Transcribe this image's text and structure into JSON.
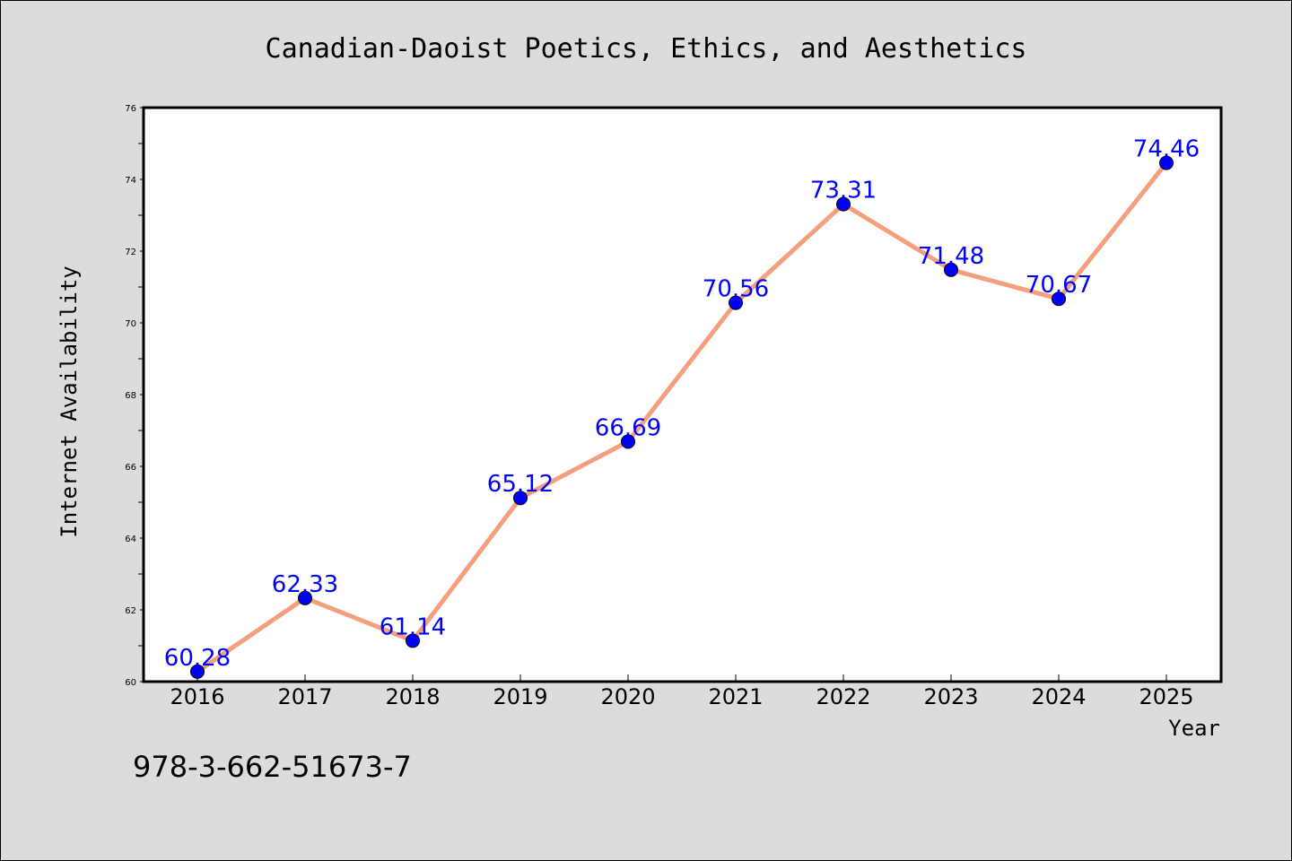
{
  "chart_data": {
    "type": "line",
    "title": "Canadian-Daoist Poetics, Ethics, and Aesthetics",
    "xlabel": "Year",
    "ylabel": "Internet Availability",
    "categories": [
      "2016",
      "2017",
      "2018",
      "2019",
      "2020",
      "2021",
      "2022",
      "2023",
      "2024",
      "2025"
    ],
    "values": [
      60.28,
      62.33,
      61.14,
      65.12,
      66.69,
      70.56,
      73.31,
      71.48,
      70.67,
      74.46
    ],
    "data_labels": [
      "60.28",
      "62.33",
      "61.14",
      "65.12",
      "66.69",
      "70.56",
      "73.31",
      "71.48",
      "70.67",
      "74.46"
    ],
    "ylim": [
      60,
      76
    ],
    "yticks": [
      "60",
      "62",
      "64",
      "66",
      "68",
      "70",
      "72",
      "74",
      "76"
    ],
    "grid": false,
    "legend": "none",
    "line_color": "#f4a07e",
    "marker_color": "#0000ff",
    "label_color": "#0000ff"
  },
  "annotation": {
    "isbn": "978-3-662-51673-7"
  }
}
